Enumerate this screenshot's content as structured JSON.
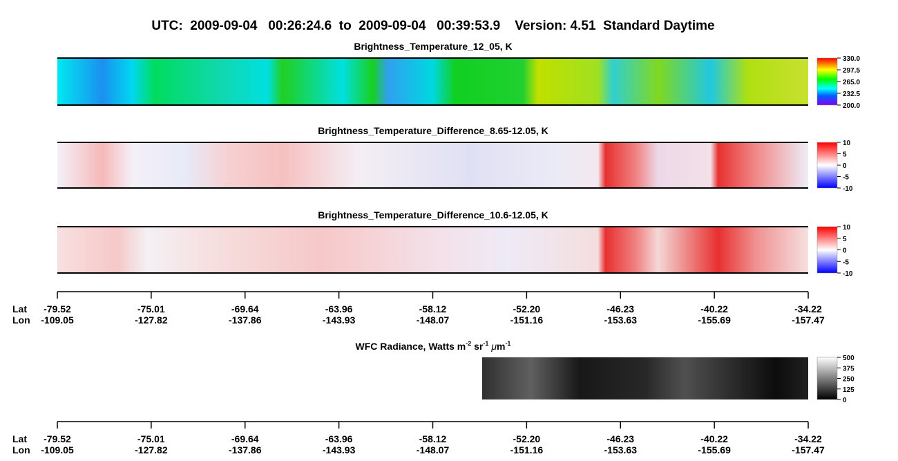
{
  "header": {
    "title": "UTC:  2009-09-04   00:26:24.6  to  2009-09-04   00:39:53.9    Version: 4.51  Standard Daytime"
  },
  "panels": [
    {
      "title": "Brightness_Temperature_12_05, K",
      "colorbar": [
        "330.0",
        "297.5",
        "265.0",
        "232.5",
        "200.0"
      ]
    },
    {
      "title": "Brightness_Temperature_Difference_8.65-12.05, K",
      "colorbar": [
        "10",
        "5",
        "0",
        "-5",
        "-10"
      ]
    },
    {
      "title": "Brightness_Temperature_Difference_10.6-12.05, K",
      "colorbar": [
        "10",
        "5",
        "0",
        "-5",
        "-10"
      ]
    }
  ],
  "axis": {
    "lat_label": "Lat",
    "lon_label": "Lon",
    "lat": [
      "-79.52",
      "-75.01",
      "-69.64",
      "-63.96",
      "-58.12",
      "-52.20",
      "-46.23",
      "-40.22",
      "-34.22"
    ],
    "lon": [
      "-109.05",
      "-127.82",
      "-137.86",
      "-143.93",
      "-148.07",
      "-151.16",
      "-153.63",
      "-155.69",
      "-157.47"
    ]
  },
  "wfc": {
    "title_parts": [
      "WFC Radiance, Watts m",
      "-2",
      " sr",
      "-1",
      " ",
      "μ",
      "m",
      "-1"
    ],
    "colorbar": [
      "500",
      "375",
      "250",
      "125",
      "0"
    ]
  },
  "axis2": {
    "lat_label": "Lat",
    "lon_label": "Lon",
    "lat": [
      "-79.52",
      "-75.01",
      "-69.64",
      "-63.96",
      "-58.12",
      "-52.20",
      "-46.23",
      "-40.22",
      "-34.22"
    ],
    "lon": [
      "-109.05",
      "-127.82",
      "-137.86",
      "-143.93",
      "-148.07",
      "-151.16",
      "-153.63",
      "-155.69",
      "-157.47"
    ]
  }
}
